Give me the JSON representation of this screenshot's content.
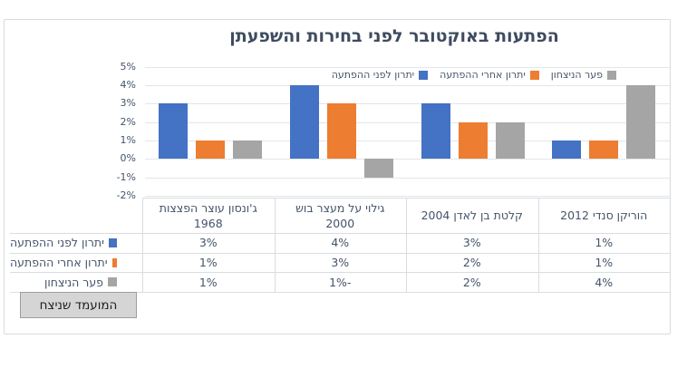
{
  "chart_title": "הפתעות באוקטובר לפני בחירות והשפעתן",
  "chart_data": {
    "type": "bar",
    "rtl": true,
    "title": "הפתעות באוקטובר לפני בחירות והשפעתן",
    "categories": [
      "ג'ונסון עוצר הפצצות 1968",
      "גילוי על מעצר בוש 2000",
      "קלטת בן לאדן 2004",
      "הוריקן סנדי 2012"
    ],
    "category_header_lines": [
      [
        "ג'ונסון עוצר הפצצות",
        "1968"
      ],
      [
        "גילוי על מעצר בוש",
        "2000"
      ],
      [
        "קלטת בן לאדן 2004"
      ],
      [
        "הוריקן סנדי 2012"
      ]
    ],
    "series": [
      {
        "name": "יתרון לפני ההפתעה",
        "color": "#4472C4",
        "values": [
          3,
          4,
          3,
          1
        ]
      },
      {
        "name": "יתרון אחרי ההפתעה",
        "color": "#ED7D31",
        "values": [
          1,
          3,
          2,
          1
        ]
      },
      {
        "name": "פער הניצחון",
        "color": "#A5A5A5",
        "values": [
          1,
          -1,
          2,
          4
        ]
      }
    ],
    "value_suffix": "%",
    "y_axis": {
      "min": -2,
      "max": 5,
      "ticks": [
        5,
        4,
        3,
        2,
        1,
        0,
        -1,
        -2
      ],
      "tick_labels": [
        "5%",
        "4%",
        "3%",
        "2%",
        "1%",
        "0%",
        "-1%",
        "-2%"
      ]
    },
    "grid": true,
    "legend_position": "top-right",
    "data_table_shown": true
  },
  "button": {
    "label": "המועמד שניצח"
  },
  "colors": {
    "series_blue": "#4472C4",
    "series_orange": "#ED7D31",
    "series_gray": "#A5A5A5",
    "grid": "#E2E6EA",
    "frame_border": "#D7DBE0",
    "text": "#44546A",
    "title": "#3E4B5F",
    "button_bg": "#D5D5D5",
    "button_border": "#9E9E9E",
    "button_text": "#1F1F1F"
  }
}
